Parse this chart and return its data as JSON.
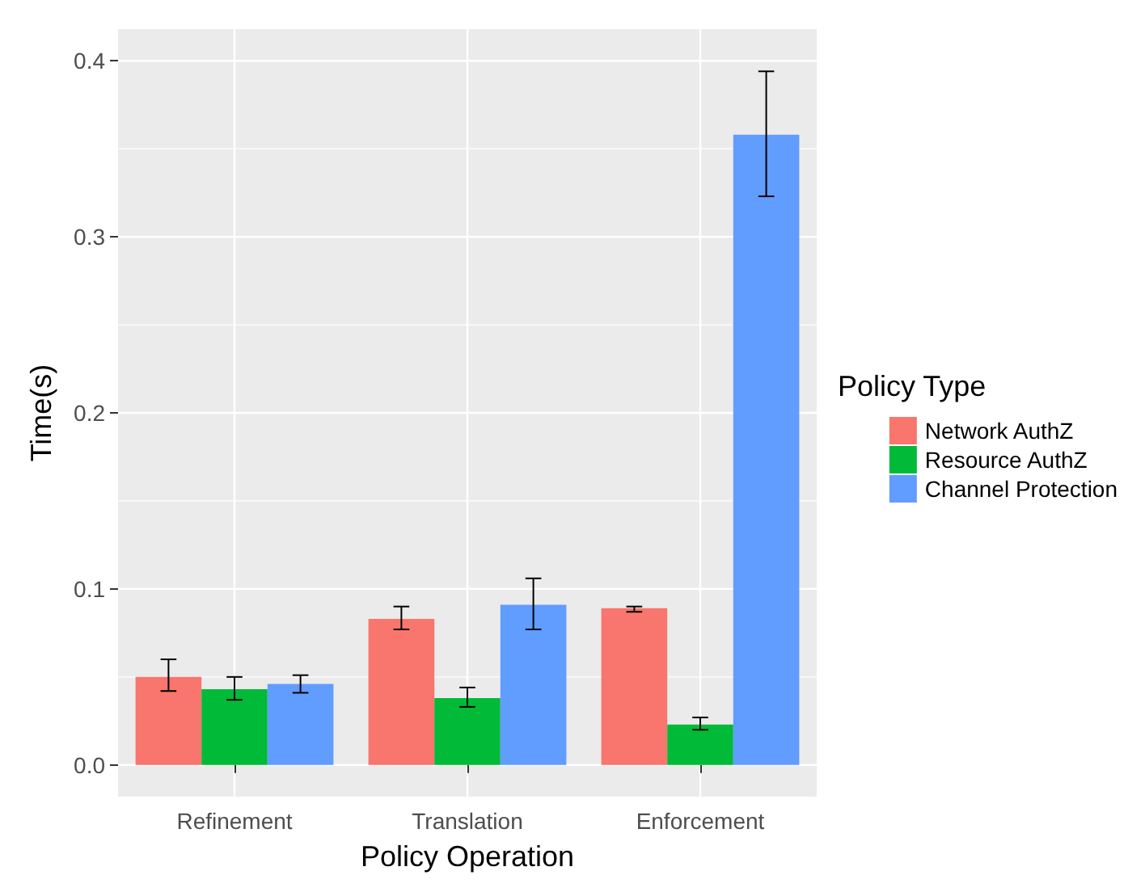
{
  "chart_data": {
    "type": "bar",
    "xlabel": "Policy Operation",
    "ylabel": "Time(s)",
    "legend_title": "Policy Type",
    "categories": [
      "Refinement",
      "Translation",
      "Enforcement"
    ],
    "series": [
      {
        "name": "Network AuthZ",
        "color": "#f8766d",
        "values": [
          0.05,
          0.083,
          0.089
        ],
        "errors": [
          [
            0.042,
            0.06
          ],
          [
            0.077,
            0.09
          ],
          [
            0.087,
            0.09
          ]
        ]
      },
      {
        "name": "Resource AuthZ",
        "color": "#00ba38",
        "values": [
          0.043,
          0.038,
          0.023
        ],
        "errors": [
          [
            0.037,
            0.05
          ],
          [
            0.033,
            0.044
          ],
          [
            0.02,
            0.027
          ]
        ]
      },
      {
        "name": "Channel Protection",
        "color": "#619cff",
        "values": [
          0.046,
          0.091,
          0.358
        ],
        "errors": [
          [
            0.041,
            0.051
          ],
          [
            0.077,
            0.106
          ],
          [
            0.323,
            0.394
          ]
        ]
      }
    ],
    "ylim": [
      -0.018,
      0.418
    ],
    "yticks": [
      {
        "value": 0,
        "label": "0.0"
      },
      {
        "value": 0.1,
        "label": "0.1"
      },
      {
        "value": 0.2,
        "label": "0.2"
      },
      {
        "value": 0.3,
        "label": "0.3"
      },
      {
        "value": 0.4,
        "label": "0.4"
      }
    ],
    "grid": true,
    "legend": "right"
  }
}
